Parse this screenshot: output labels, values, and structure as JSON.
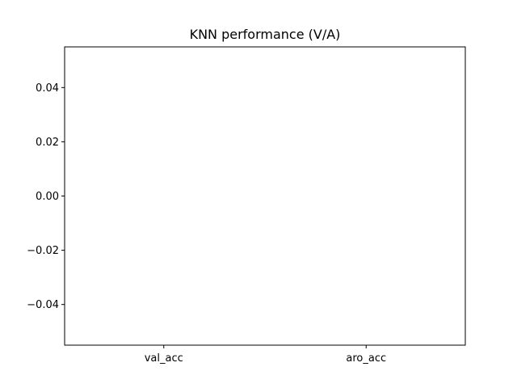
{
  "chart_data": {
    "type": "bar",
    "title": "KNN performance (V/A)",
    "categories": [
      "val_acc",
      "aro_acc"
    ],
    "values": [
      0,
      0
    ],
    "ylim": [
      -0.055,
      0.055
    ],
    "yticks": [
      0.04,
      0.02,
      0.0,
      -0.02,
      -0.04
    ],
    "ytick_labels": [
      "0.04",
      "0.02",
      "0.00",
      "−0.02",
      "−0.04"
    ],
    "xlabel": "",
    "ylabel": "",
    "grid": false,
    "legend": "none",
    "axes_color": "#000000",
    "background_color": "#ffffff"
  }
}
